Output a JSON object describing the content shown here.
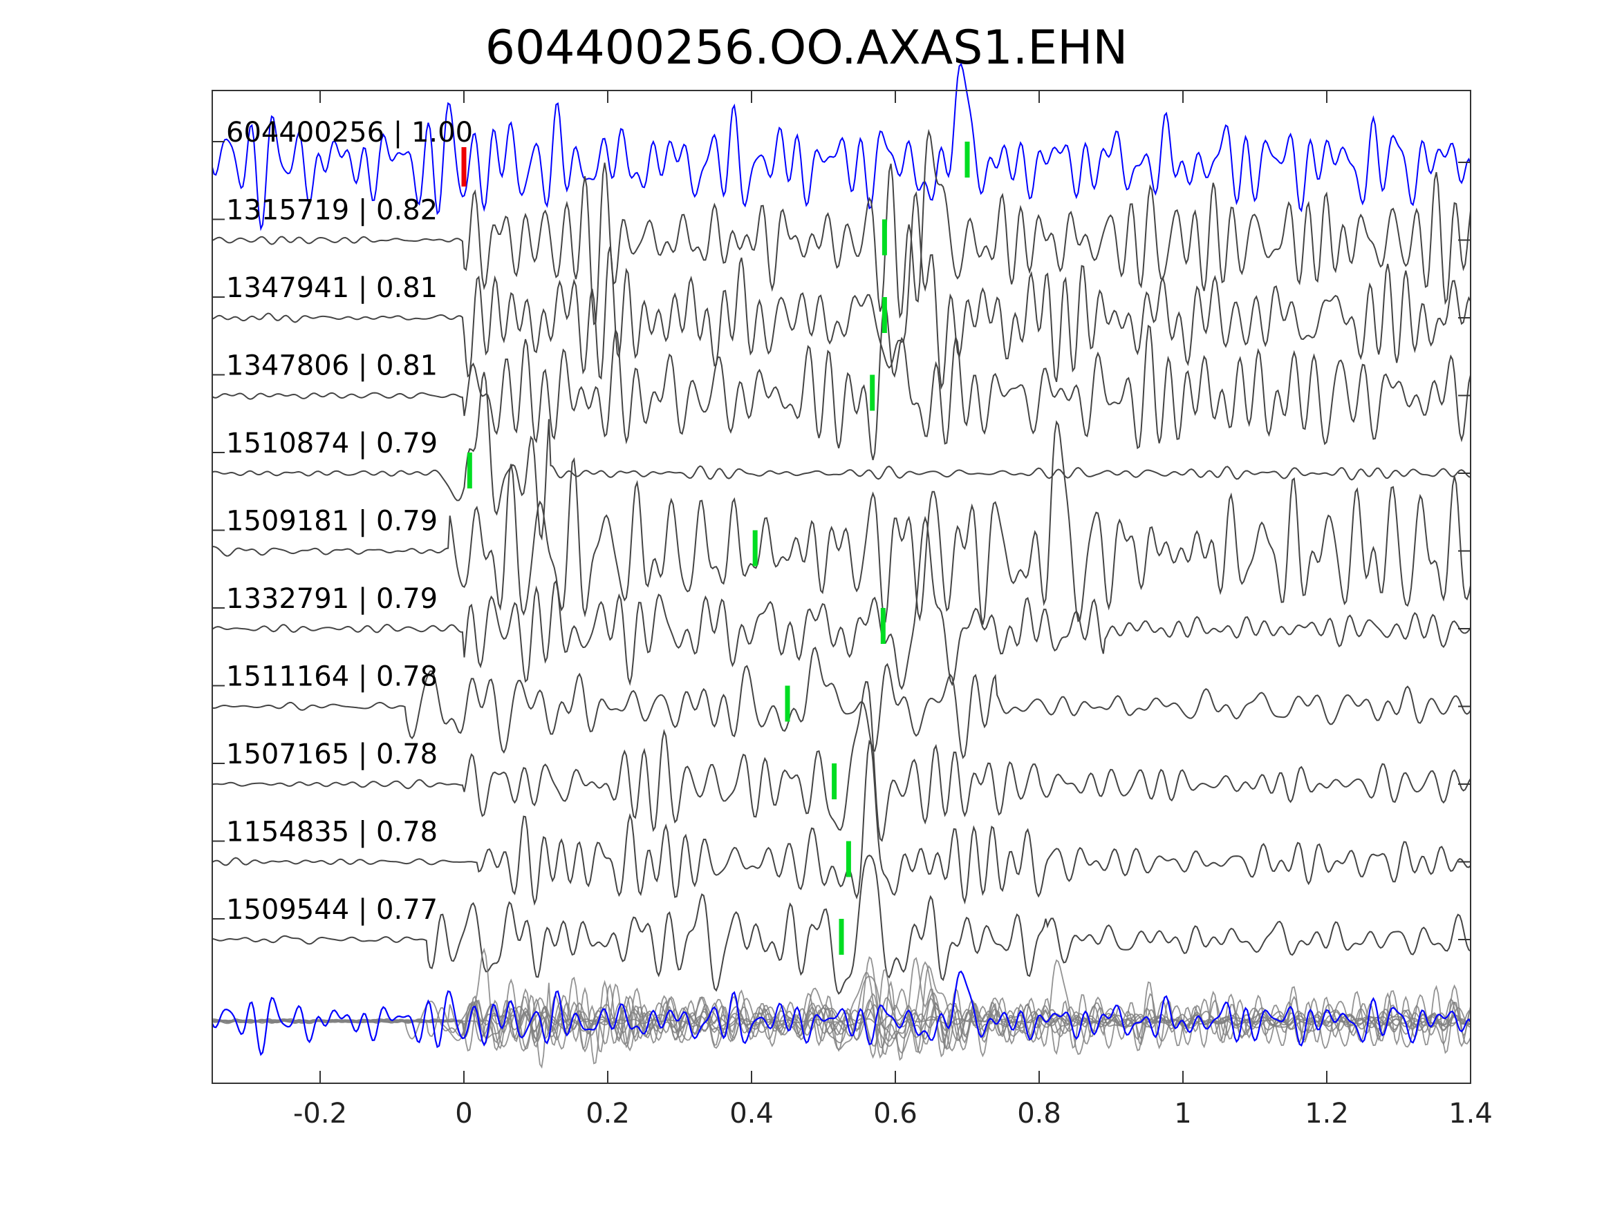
{
  "chart_data": {
    "type": "line",
    "title": "604400256.OO.AXAS1.EHN",
    "xlabel": "",
    "ylabel": "",
    "xlim": [
      -0.35,
      1.4
    ],
    "xticks": [
      -0.2,
      0,
      0.2,
      0.4,
      0.6,
      0.8,
      1,
      1.2,
      1.4
    ],
    "xtick_labels": [
      "-0.2",
      "0",
      "0.2",
      "0.4",
      "0.6",
      "0.8",
      "1",
      "1.2",
      "1.4"
    ],
    "grid": false,
    "template_pick": 0.0,
    "colors": {
      "template": "#0000ff",
      "trace": "#444444",
      "stack": "#808080",
      "pick": "#00dd22",
      "ref_pick": "#ee0000"
    },
    "series": [
      {
        "label": "604400256 | 1.00",
        "pick": 0.7,
        "amp": 0.42,
        "onset": -0.35,
        "event": 0.69,
        "env": "template"
      },
      {
        "label": "1315719 | 0.82",
        "pick": 0.585,
        "amp": 0.42,
        "onset": 0.0,
        "event": 0.65,
        "env": "busy"
      },
      {
        "label": "1347941 | 0.81",
        "pick": 0.585,
        "amp": 0.42,
        "onset": 0.0,
        "event": 0.63,
        "env": "busy"
      },
      {
        "label": "1347806 | 0.81",
        "pick": 0.568,
        "amp": 0.38,
        "onset": 0.0,
        "event": 0.59,
        "env": "busy"
      },
      {
        "label": "1510874 | 0.79",
        "pick": 0.008,
        "amp": 0.3,
        "onset": 0.0,
        "event": 0.02,
        "env": "early"
      },
      {
        "label": "1509181 | 0.79",
        "pick": 0.405,
        "amp": 0.45,
        "onset": -0.02,
        "event": 0.82,
        "env": "busy"
      },
      {
        "label": "1332791 | 0.79",
        "pick": 0.583,
        "amp": 0.4,
        "onset": 0.0,
        "event": 0.64,
        "env": "late"
      },
      {
        "label": "1511164 | 0.78",
        "pick": 0.45,
        "amp": 0.38,
        "onset": -0.08,
        "event": 0.49,
        "env": "late"
      },
      {
        "label": "1507165 | 0.78",
        "pick": 0.515,
        "amp": 0.45,
        "onset": 0.0,
        "event": 0.55,
        "env": "late"
      },
      {
        "label": "1154835 | 0.78",
        "pick": 0.535,
        "amp": 0.4,
        "onset": 0.02,
        "event": 0.56,
        "env": "late"
      },
      {
        "label": "1509544 | 0.77",
        "pick": 0.525,
        "amp": 0.4,
        "onset": -0.05,
        "event": 0.56,
        "env": "late"
      }
    ]
  }
}
